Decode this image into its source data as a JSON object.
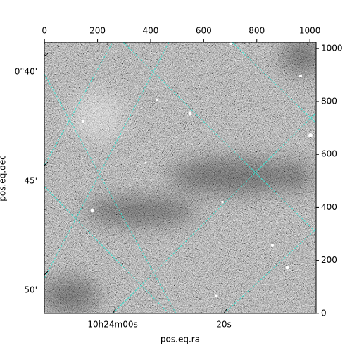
{
  "chart_data": {
    "type": "image",
    "xlabel": "pos.eq.ra",
    "ylabel": "pos.eq.dec",
    "xlim": [
      -0.5,
      1023.5
    ],
    "ylim": [
      -0.5,
      1023.5
    ],
    "xticks": [
      0,
      200,
      400,
      600,
      800,
      1000
    ],
    "yticks": [
      0,
      200,
      400,
      600,
      800,
      1000
    ],
    "ralim": [
      -12.3,
      36.6
    ],
    "raticks": [
      {
        "value": 0,
        "label": "10h24m00s"
      },
      {
        "value": 20,
        "label": "20s"
      }
    ],
    "declim": [
      39.35,
      51.77
    ],
    "decticks": [
      {
        "value": 40,
        "label": "0°40'"
      },
      {
        "value": 45,
        "label": "45'"
      },
      {
        "value": 50,
        "label": "50'"
      }
    ],
    "grid_color": "#40e0d0"
  }
}
